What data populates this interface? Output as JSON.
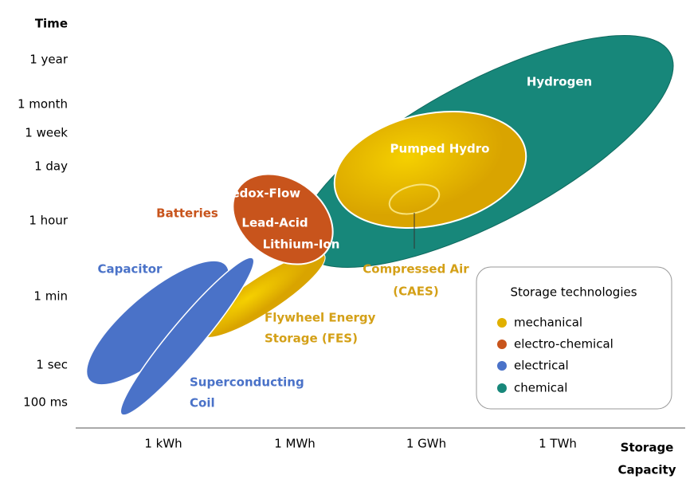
{
  "axes": {
    "y_title": "Time",
    "y_labels": [
      "1 year",
      "1 month",
      "1 week",
      "1 day",
      "1 hour",
      "1 min",
      "1 sec",
      "100 ms"
    ],
    "x_labels": [
      "1 kWh",
      "1 MWh",
      "1 GWh",
      "1 TWh"
    ],
    "x_title": [
      "Storage",
      "Capacity"
    ]
  },
  "regions": {
    "hydrogen": "Hydrogen",
    "pumped_hydro": "Pumped Hydro",
    "redox_flow": "Redox-Flow",
    "lead_acid": "Lead-Acid",
    "lithium_ion": "Lithium-Ion",
    "batteries": "Batteries",
    "capacitor": "Capacitor",
    "superconducting": [
      "Superconducting",
      "Coil"
    ],
    "flywheel": [
      "Flywheel Energy",
      "Storage (FES)"
    ],
    "caes": [
      "Compressed Air",
      "(CAES)"
    ]
  },
  "legend": {
    "title": "Storage technologies",
    "items": [
      "mechanical",
      "electro-chemical",
      "electrical",
      "chemical"
    ]
  }
}
